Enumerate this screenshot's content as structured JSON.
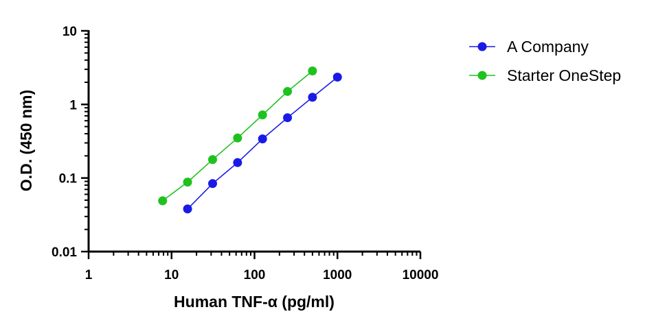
{
  "chart_data": {
    "type": "scatter",
    "xlabel": "Human TNF-α (pg/ml)",
    "ylabel": "O.D. (450 nm)",
    "xscale": "log",
    "yscale": "log",
    "xlim": [
      1,
      10000
    ],
    "ylim": [
      0.01,
      10
    ],
    "xticks": [
      1,
      10,
      100,
      1000,
      10000
    ],
    "xtick_labels": [
      "1",
      "10",
      "100",
      "1000",
      "10000"
    ],
    "yticks": [
      0.01,
      0.1,
      1,
      10
    ],
    "ytick_labels": [
      "0.01",
      "0.1",
      "1",
      "10"
    ],
    "grid": false,
    "legend_position": "top-right outside",
    "series": [
      {
        "name": "A Company",
        "color": "#1a1ae6",
        "x": [
          15.6,
          31.25,
          62.5,
          125,
          250,
          500,
          1000
        ],
        "y": [
          0.038,
          0.084,
          0.162,
          0.34,
          0.66,
          1.25,
          2.35
        ]
      },
      {
        "name": "Starter OneStep",
        "color": "#1ec21e",
        "x": [
          7.8,
          15.6,
          31.25,
          62.5,
          125,
          250,
          500
        ],
        "y": [
          0.049,
          0.088,
          0.178,
          0.35,
          0.72,
          1.5,
          2.85
        ]
      }
    ]
  }
}
